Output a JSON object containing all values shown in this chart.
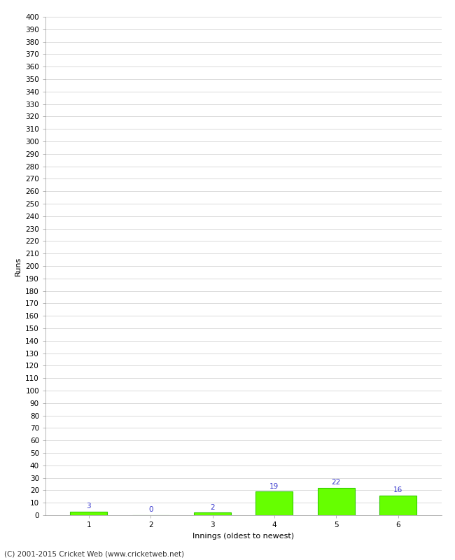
{
  "innings": [
    1,
    2,
    3,
    4,
    5,
    6
  ],
  "runs": [
    3,
    0,
    2,
    19,
    22,
    16
  ],
  "bar_color": "#66ff00",
  "bar_edge_color": "#33cc00",
  "label_color": "#3333cc",
  "xlabel": "Innings (oldest to newest)",
  "ylabel": "Runs",
  "ylim": [
    0,
    400
  ],
  "background_color": "#ffffff",
  "grid_color": "#cccccc",
  "footer": "(C) 2001-2015 Cricket Web (www.cricketweb.net)",
  "label_fontsize": 7.5,
  "axis_label_fontsize": 8,
  "tick_fontsize": 7.5,
  "footer_fontsize": 7.5
}
